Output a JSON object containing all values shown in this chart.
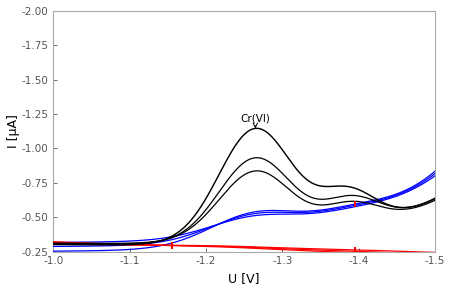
{
  "xlabel": "U [V]",
  "ylabel": "I [µA]",
  "annotation_text": "Cr(VI)",
  "background_color": "#ffffff",
  "tick_color": "#555555",
  "label_color": "#000000",
  "xlim_left": -1.0,
  "xlim_right": -1.5,
  "ylim_bottom": -0.25,
  "ylim_top": -2.0,
  "yticks": [
    -0.25,
    -0.5,
    -0.75,
    -1.0,
    -1.25,
    -1.5,
    -1.75,
    -2.0
  ],
  "xticks": [
    -1.0,
    -1.1,
    -1.2,
    -1.3,
    -1.4,
    -1.5
  ]
}
